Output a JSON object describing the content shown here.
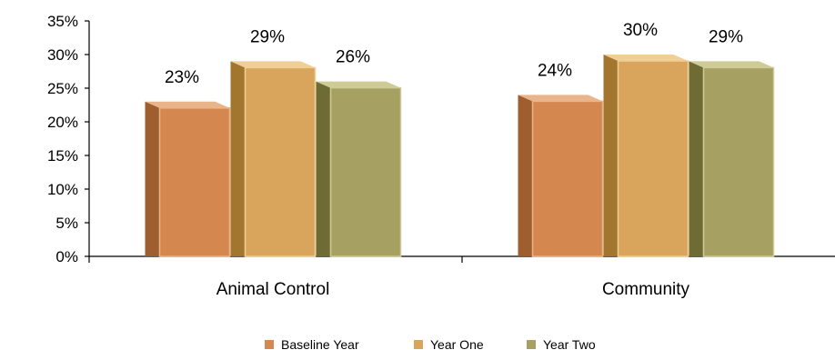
{
  "chart_data": {
    "type": "bar",
    "categories": [
      "Animal Control",
      "Community"
    ],
    "series": [
      {
        "name": "Baseline Year",
        "values": [
          23,
          24
        ],
        "labels": [
          "23%",
          "24%"
        ],
        "color": "#D4874F",
        "dark": "#9E5E2E",
        "light": "#E9B48A"
      },
      {
        "name": "Year One",
        "values": [
          29,
          30
        ],
        "labels": [
          "29%",
          "30%"
        ],
        "color": "#D9A55C",
        "dark": "#A3762F",
        "light": "#F0CF97"
      },
      {
        "name": "Year Two",
        "values": [
          26,
          29
        ],
        "labels": [
          "26%",
          "29%"
        ],
        "color": "#A6A062",
        "dark": "#6F6B35",
        "light": "#CFCB96"
      }
    ],
    "ylim": [
      0,
      35
    ],
    "yticks": [
      0,
      5,
      10,
      15,
      20,
      25,
      30,
      35
    ],
    "ytick_labels": [
      "0%",
      "5%",
      "10%",
      "15%",
      "20%",
      "25%",
      "30%",
      "35%"
    ],
    "grid": false,
    "legend_position": "bottom",
    "title": "",
    "xlabel": "",
    "ylabel": ""
  }
}
